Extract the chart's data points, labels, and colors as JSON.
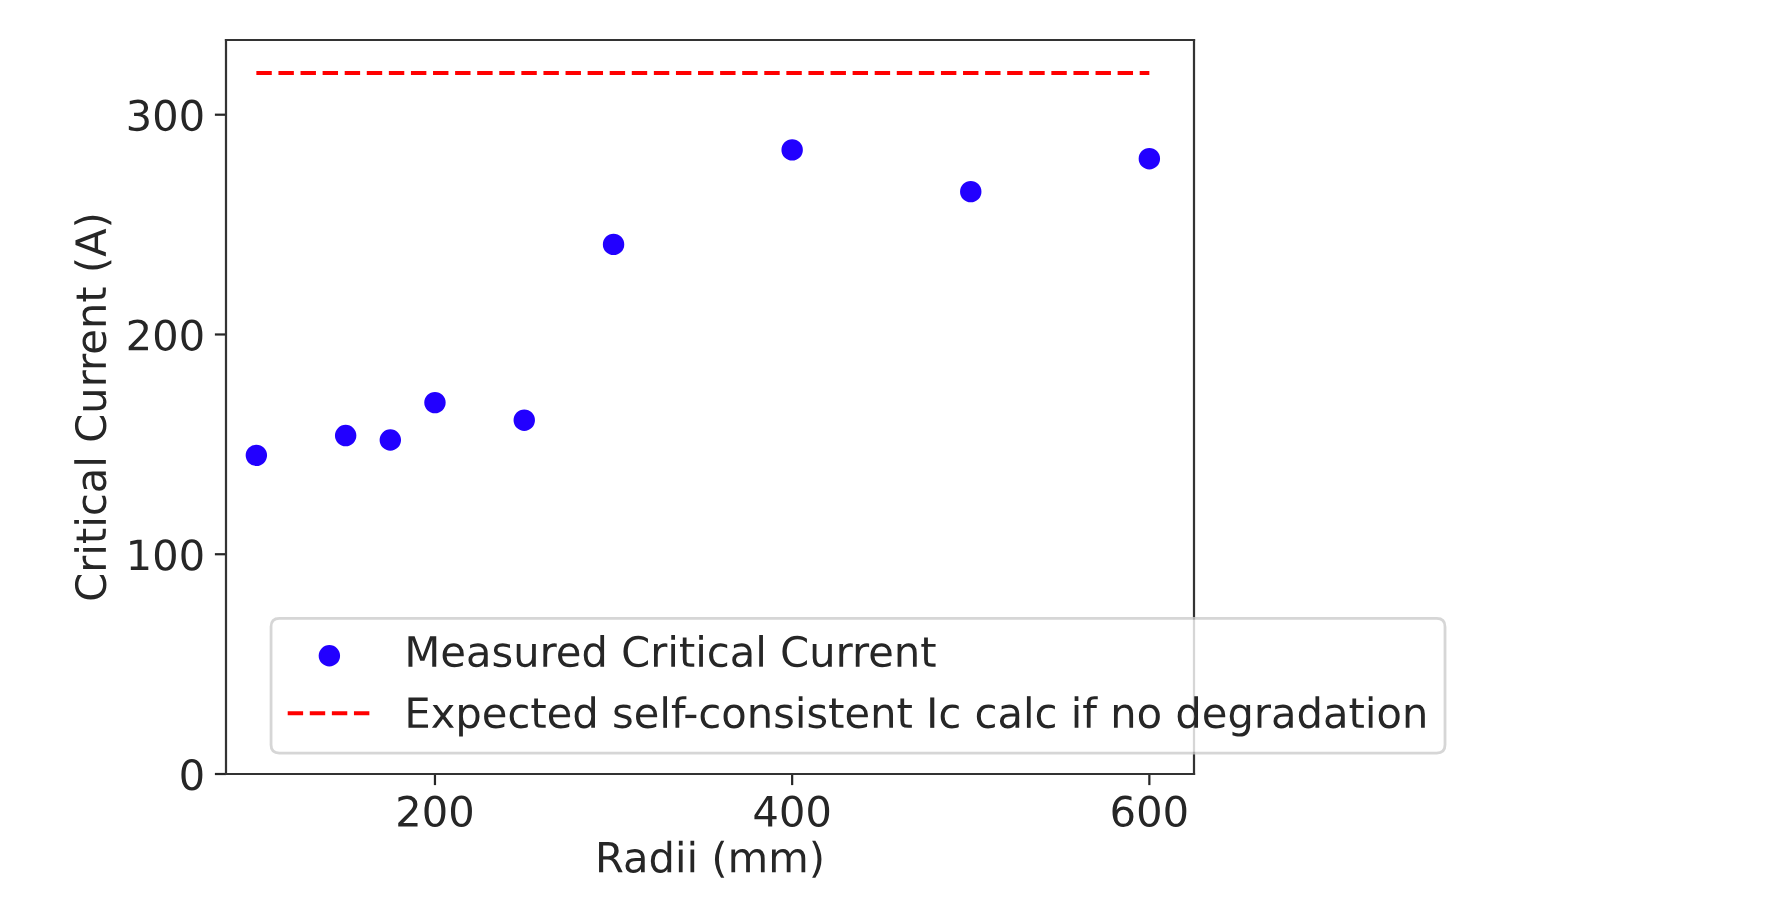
{
  "chart_data": {
    "type": "scatter",
    "xlabel": "Radii (mm)",
    "ylabel": "Critical Current (A)",
    "xlim": [
      83,
      625
    ],
    "ylim": [
      0,
      334
    ],
    "xticks": [
      200,
      400,
      600
    ],
    "yticks": [
      0,
      100,
      200,
      300
    ],
    "series": [
      {
        "name": "Measured Critical Current",
        "color": "#2200ff",
        "marker": "circle",
        "x": [
          100,
          150,
          175,
          200,
          250,
          300,
          400,
          500,
          600
        ],
        "values": [
          145,
          154,
          152,
          169,
          161,
          241,
          284,
          265,
          280
        ]
      },
      {
        "name": "Expected self-consistent Ic calc if no degradation",
        "type": "line",
        "color": "#ff0000",
        "line_style": "dashed",
        "x": [
          100,
          600
        ],
        "values": [
          319,
          319
        ]
      }
    ],
    "grid": false,
    "legend": "bottom"
  }
}
